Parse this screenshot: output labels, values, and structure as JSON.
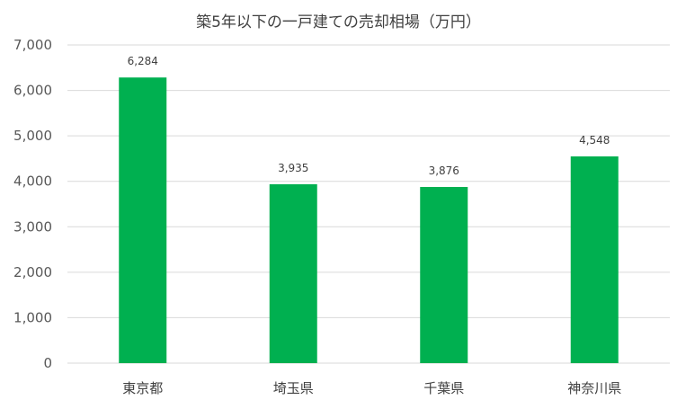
{
  "chart_data": {
    "type": "bar",
    "title": "築5年以下の一戸建ての売却相場（万円）",
    "categories": [
      "東京都",
      "埼玉県",
      "千葉県",
      "神奈川県"
    ],
    "values": [
      6284,
      3935,
      3876,
      4548
    ],
    "data_labels": [
      "6,284",
      "3,935",
      "3,876",
      "4,548"
    ],
    "ylim": [
      0,
      7000
    ],
    "y_ticks": [
      0,
      1000,
      2000,
      3000,
      4000,
      5000,
      6000,
      7000
    ],
    "y_tick_labels": [
      "0",
      "1,000",
      "2,000",
      "3,000",
      "4,000",
      "5,000",
      "6,000",
      "7,000"
    ],
    "bar_color": "#00b050",
    "grid": true,
    "legend": "none"
  }
}
